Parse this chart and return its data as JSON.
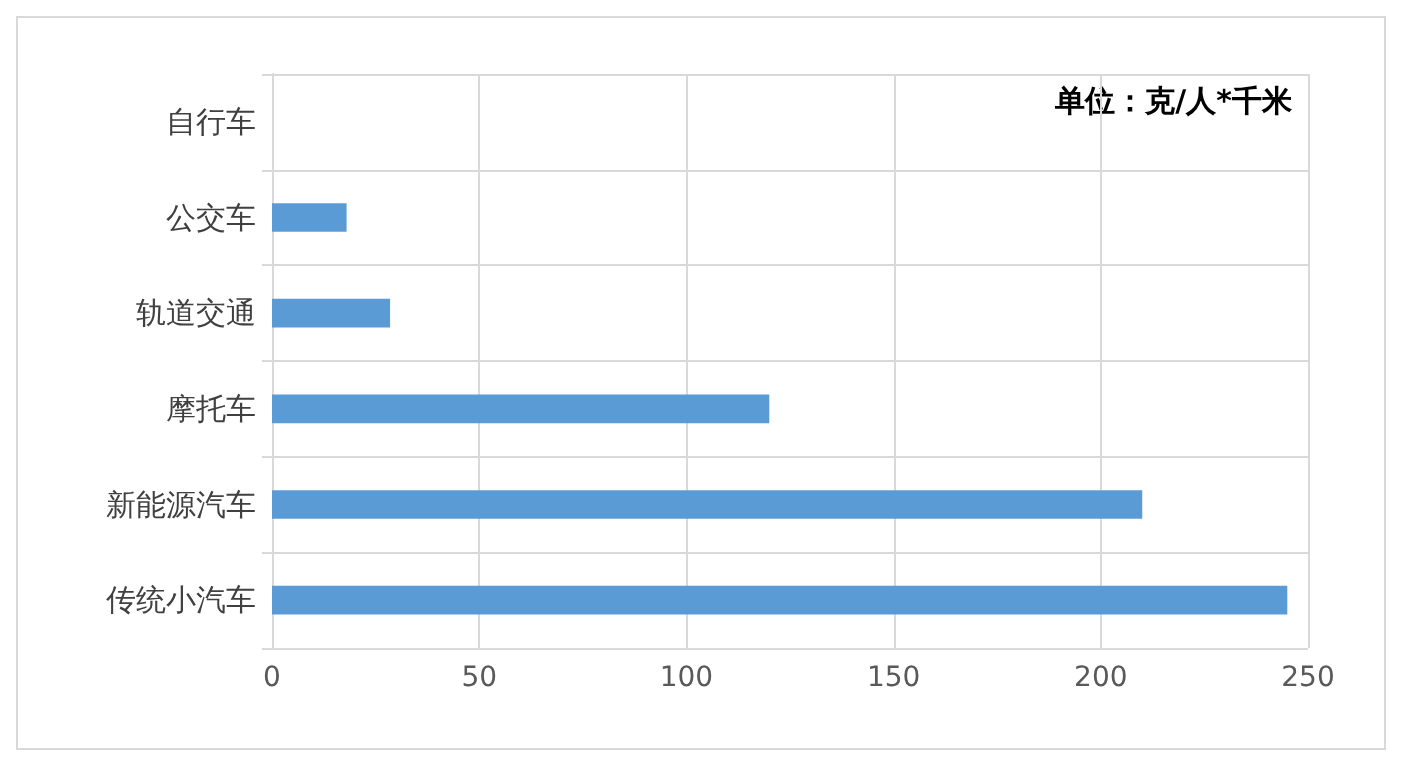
{
  "chart_data": {
    "type": "bar",
    "orientation": "horizontal",
    "categories": [
      "自行车",
      "公交车",
      "轨道交通",
      "摩托车",
      "新能源汽车",
      "传统小汽车"
    ],
    "values": [
      0,
      18,
      28.5,
      120,
      210,
      245
    ],
    "color": "#5b9bd5",
    "xlim": [
      0,
      250
    ],
    "xticks": [
      0,
      50,
      100,
      150,
      200,
      250
    ],
    "grid": true,
    "annotations": [
      "单位：克/人*千米"
    ]
  }
}
